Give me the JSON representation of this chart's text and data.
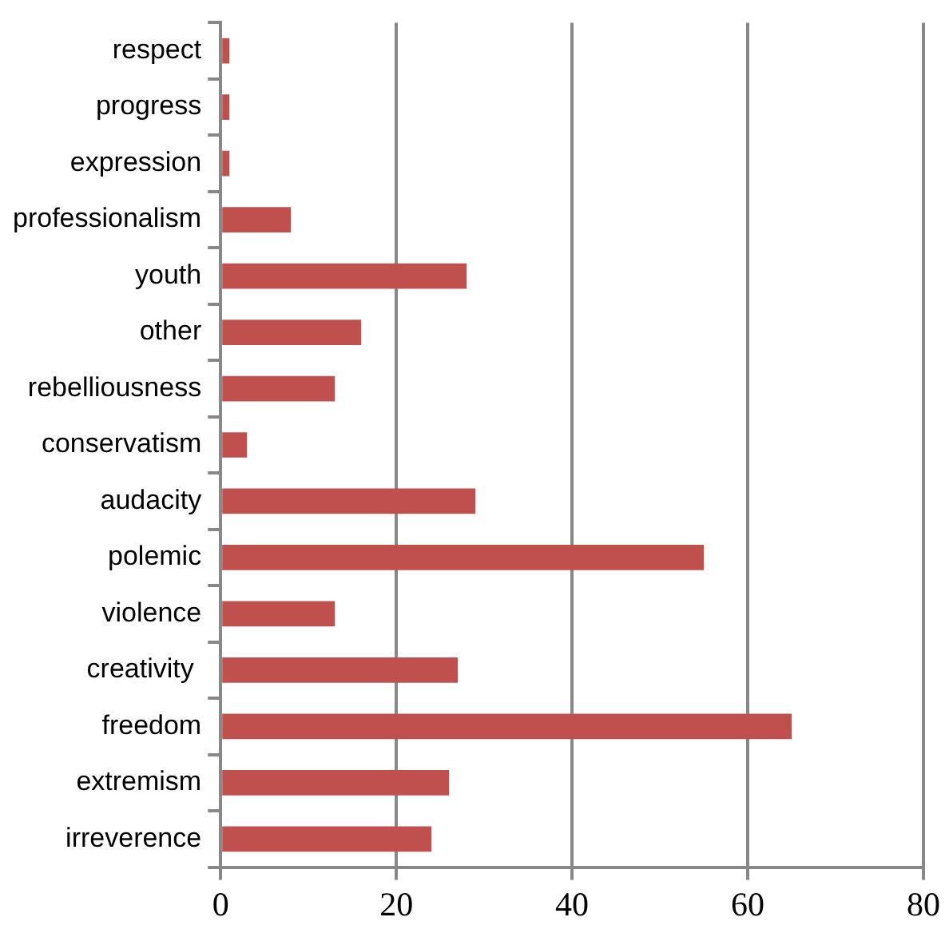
{
  "chart_data": {
    "type": "bar",
    "orientation": "horizontal",
    "categories": [
      "respect",
      "progress",
      "expression",
      "professionalism",
      "youth",
      "other",
      "rebelliousness",
      "conservatism",
      "audacity",
      "polemic",
      "violence",
      "creativity ",
      "freedom",
      "extremism",
      "irreverence"
    ],
    "values": [
      1,
      1,
      1,
      8,
      28,
      16,
      13,
      3,
      29,
      55,
      13,
      27,
      65,
      26,
      24
    ],
    "color": "#c0504d",
    "xlim": [
      0,
      80
    ],
    "xticks": [
      0,
      20,
      40,
      60,
      80
    ],
    "grid": "x",
    "legend": false
  }
}
